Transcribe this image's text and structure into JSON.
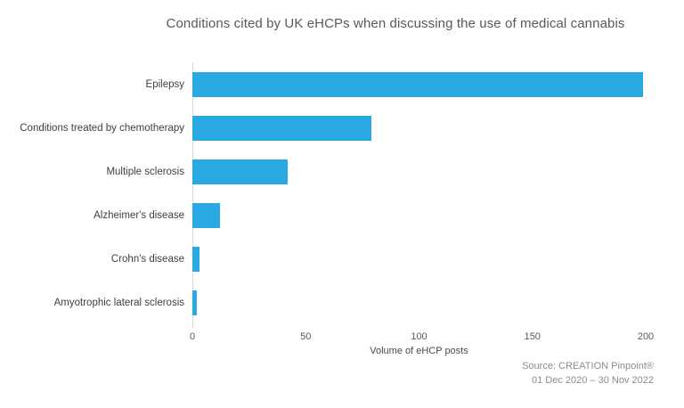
{
  "title": "Conditions cited by UK eHCPs when discussing the use of medical cannabis",
  "chart_data": {
    "type": "bar",
    "orientation": "horizontal",
    "title": "Conditions cited by UK eHCPs when discussing the use of medical cannabis",
    "categories": [
      "Epilepsy",
      "Conditions treated by chemotherapy",
      "Multiple sclerosis",
      "Alzheimer's disease",
      "Crohn's disease",
      "Amyotrophic lateral sclerosis"
    ],
    "values": [
      199,
      79,
      42,
      12,
      3,
      2
    ],
    "xlabel": "Volume of eHCP posts",
    "ylabel": "",
    "xlim": [
      0,
      200
    ],
    "x_ticks": [
      0,
      50,
      100,
      150,
      200
    ],
    "grid": false,
    "legend": false,
    "sorted": "descending"
  },
  "source": {
    "line1": "Source: CREATION Pinpoint®",
    "line2": "01 Dec 2020 – 30 Nov 2022"
  },
  "colors": {
    "background": "#FFFFFF",
    "bar": "#29A9E1",
    "axis_line": "#D9D9D9",
    "title_text": "#595959",
    "category_text": "#3F3F3F",
    "tick_text": "#595959",
    "xlabel_text": "#4A4A4A",
    "source_text": "#8C8C8C"
  }
}
